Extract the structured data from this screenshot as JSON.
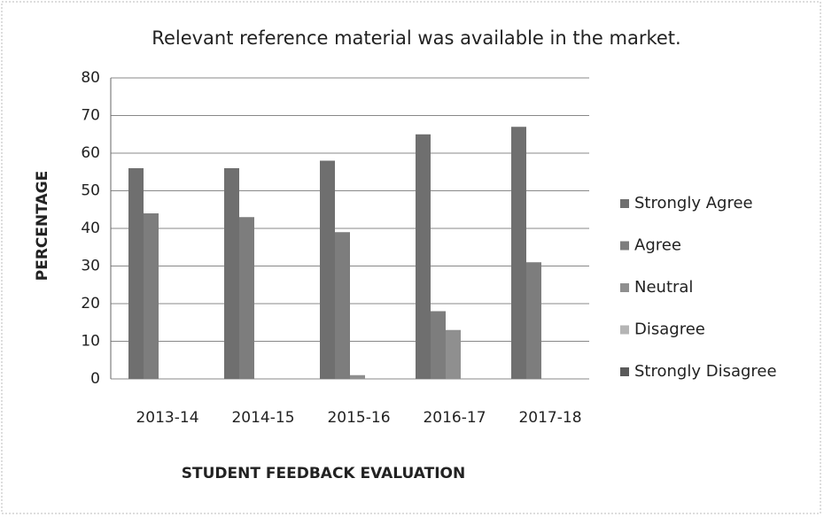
{
  "chart_data": {
    "type": "bar",
    "title": "Relevant reference material was available in the market.",
    "x_label": "STUDENT FEEDBACK EVALUATION",
    "y_label": "PERCENTAGE",
    "categories": [
      "2013-14",
      "2014-15",
      "2015-16",
      "2016-17",
      "2017-18"
    ],
    "series": [
      {
        "name": "Strongly Agree",
        "color": "#6f6f6f",
        "values": [
          56,
          56,
          58,
          65,
          67
        ]
      },
      {
        "name": "Agree",
        "color": "#7d7d7d",
        "values": [
          44,
          43,
          39,
          18,
          31
        ]
      },
      {
        "name": "Neutral",
        "color": "#8f8f8f",
        "values": [
          0,
          0,
          1,
          13,
          0
        ]
      },
      {
        "name": "Disagree",
        "color": "#b5b5b5",
        "values": [
          0,
          0,
          0,
          0,
          0
        ]
      },
      {
        "name": "Strongly Disagree",
        "color": "#5a5a5a",
        "values": [
          0,
          0,
          0,
          0,
          0
        ]
      }
    ],
    "ylim": [
      0,
      80
    ],
    "yticks": [
      0,
      10,
      20,
      30,
      40,
      50,
      60,
      70,
      80
    ],
    "grid": true,
    "legend": "right"
  }
}
